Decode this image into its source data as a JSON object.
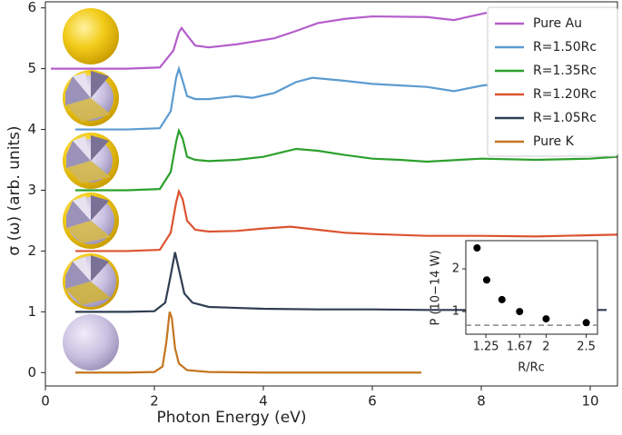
{
  "chart_data": [
    {
      "type": "line",
      "x_label": "Photon Energy (eV)",
      "y_label": "σ (ω) (arb. units)",
      "xlim": [
        0,
        10.5
      ],
      "ylim": [
        -0.22,
        6.1
      ],
      "xticks": [
        0,
        2,
        4,
        6,
        8,
        10
      ],
      "yticks": [
        0,
        1,
        2,
        3,
        4,
        5,
        6
      ],
      "legend": "upper right",
      "series": [
        {
          "name": "Pure Au",
          "color": "#b55dcc",
          "x": [
            0.1,
            1.5,
            2.1,
            2.35,
            2.45,
            2.5,
            2.6,
            2.75,
            3.0,
            3.5,
            4.2,
            4.6,
            5,
            5.5,
            6,
            7,
            7.5,
            8.1
          ],
          "values": [
            5,
            5,
            5.02,
            5.3,
            5.6,
            5.67,
            5.55,
            5.38,
            5.35,
            5.4,
            5.5,
            5.62,
            5.75,
            5.82,
            5.86,
            5.85,
            5.8,
            5.92
          ]
        },
        {
          "name": "R=1.50Rc",
          "color": "#5b9bd0",
          "x": [
            0.55,
            1.5,
            2.1,
            2.3,
            2.4,
            2.45,
            2.52,
            2.6,
            2.75,
            3.0,
            3.5,
            3.8,
            4.2,
            4.6,
            4.9,
            5.5,
            6,
            7,
            7.5,
            8,
            8.3
          ],
          "values": [
            4,
            4,
            4.02,
            4.3,
            4.85,
            5.0,
            4.8,
            4.55,
            4.5,
            4.5,
            4.55,
            4.52,
            4.6,
            4.78,
            4.85,
            4.8,
            4.75,
            4.7,
            4.63,
            4.72,
            4.75
          ]
        },
        {
          "name": "R=1.35Rc",
          "color": "#2ca02c",
          "x": [
            0.55,
            1.5,
            2.1,
            2.3,
            2.4,
            2.45,
            2.52,
            2.6,
            2.75,
            3.0,
            3.5,
            4.0,
            4.6,
            5.0,
            5.5,
            6,
            6.5,
            7,
            8,
            9,
            10,
            10.5
          ],
          "values": [
            3,
            3,
            3.02,
            3.3,
            3.8,
            3.98,
            3.85,
            3.55,
            3.5,
            3.48,
            3.5,
            3.55,
            3.68,
            3.65,
            3.58,
            3.52,
            3.5,
            3.47,
            3.52,
            3.5,
            3.52,
            3.55
          ]
        },
        {
          "name": "R=1.20Rc",
          "color": "#dc5331",
          "x": [
            0.55,
            1.5,
            2.1,
            2.3,
            2.4,
            2.45,
            2.52,
            2.6,
            2.75,
            3.0,
            3.5,
            4.0,
            4.5,
            5.0,
            5.5,
            6,
            7,
            8,
            9,
            10,
            10.5
          ],
          "values": [
            2,
            2,
            2.02,
            2.3,
            2.8,
            2.98,
            2.85,
            2.5,
            2.35,
            2.32,
            2.33,
            2.37,
            2.4,
            2.35,
            2.3,
            2.28,
            2.25,
            2.25,
            2.24,
            2.26,
            2.27
          ]
        },
        {
          "name": "R=1.05Rc",
          "color": "#2f3d52",
          "x": [
            0.55,
            1.5,
            2.0,
            2.2,
            2.3,
            2.38,
            2.45,
            2.55,
            2.7,
            3.0,
            4,
            5,
            6,
            7,
            8,
            9,
            10.3
          ],
          "values": [
            1,
            1,
            1.01,
            1.15,
            1.6,
            1.98,
            1.7,
            1.3,
            1.15,
            1.08,
            1.05,
            1.04,
            1.04,
            1.03,
            1.03,
            1.03,
            1.03
          ]
        },
        {
          "name": "Pure K",
          "color": "#c4741f",
          "x": [
            0.55,
            1.5,
            2.0,
            2.15,
            2.22,
            2.28,
            2.32,
            2.38,
            2.45,
            2.6,
            3.0,
            4,
            5,
            6,
            6.9
          ],
          "values": [
            0,
            0,
            0.01,
            0.1,
            0.5,
            1.0,
            0.9,
            0.4,
            0.15,
            0.04,
            0.01,
            0,
            0,
            0,
            0
          ]
        }
      ]
    },
    {
      "type": "scatter",
      "x_label": "R/Rc",
      "y_label": "P (10−14 W)",
      "xlim": [
        1.0,
        2.64
      ],
      "ylim": [
        0.47,
        2.66
      ],
      "xticks": [
        1.25,
        1.67,
        2,
        2.5
      ],
      "yticks": [
        1,
        2
      ],
      "color": "#000000",
      "reference_line": 0.68,
      "x": [
        1.14,
        1.26,
        1.45,
        1.67,
        2.0,
        2.5
      ],
      "values": [
        2.49,
        1.74,
        1.28,
        1.0,
        0.83,
        0.74
      ]
    }
  ]
}
